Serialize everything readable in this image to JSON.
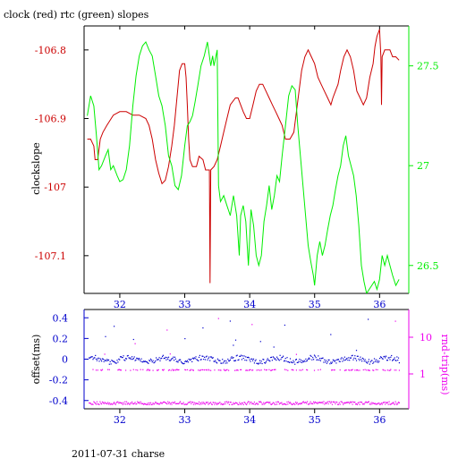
{
  "page": {
    "title": "clock (red) rtc (green) slopes",
    "footer": "2011-07-31 charse"
  },
  "colors": {
    "clock": "#cc0000",
    "rtc": "#00ee00",
    "offset": "#0000cc",
    "roundtrip": "#ee00ee",
    "axes": "#000000"
  },
  "chart_data": [
    {
      "type": "line",
      "xlim": [
        31.45,
        36.45
      ],
      "x_ticks": [
        "32",
        "33",
        "34",
        "35",
        "36"
      ],
      "x_tick_values": [
        32,
        33,
        34,
        35,
        36
      ],
      "ylabel_left": "clockslope",
      "ylim_left": [
        -107.155,
        -106.765
      ],
      "y_ticks_left": [
        "-106.8",
        "-106.9",
        "-107",
        "-107.1"
      ],
      "y_tick_values_left": [
        -106.8,
        -106.9,
        -107.0,
        -107.1
      ],
      "ylim_right": [
        26.36,
        27.7
      ],
      "y_ticks_right": [
        "27.5",
        "27",
        "26.5"
      ],
      "y_tick_values_right": [
        27.5,
        27.0,
        26.5
      ],
      "series": [
        {
          "name": "clock",
          "axis": "left",
          "points": [
            [
              31.5,
              -106.93
            ],
            [
              31.55,
              -106.93
            ],
            [
              31.6,
              -106.94
            ],
            [
              31.62,
              -106.96
            ],
            [
              31.66,
              -106.96
            ],
            [
              31.7,
              -106.93
            ],
            [
              31.74,
              -106.92
            ],
            [
              31.8,
              -106.91
            ],
            [
              31.9,
              -106.895
            ],
            [
              32.0,
              -106.89
            ],
            [
              32.1,
              -106.89
            ],
            [
              32.2,
              -106.895
            ],
            [
              32.3,
              -106.895
            ],
            [
              32.4,
              -106.9
            ],
            [
              32.45,
              -106.91
            ],
            [
              32.5,
              -106.93
            ],
            [
              32.55,
              -106.96
            ],
            [
              32.6,
              -106.98
            ],
            [
              32.65,
              -106.995
            ],
            [
              32.7,
              -106.99
            ],
            [
              32.75,
              -106.97
            ],
            [
              32.8,
              -106.94
            ],
            [
              32.84,
              -106.91
            ],
            [
              32.88,
              -106.87
            ],
            [
              32.92,
              -106.83
            ],
            [
              32.96,
              -106.82
            ],
            [
              33.0,
              -106.82
            ],
            [
              33.02,
              -106.84
            ],
            [
              33.04,
              -106.88
            ],
            [
              33.06,
              -106.93
            ],
            [
              33.08,
              -106.96
            ],
            [
              33.12,
              -106.97
            ],
            [
              33.18,
              -106.97
            ],
            [
              33.22,
              -106.955
            ],
            [
              33.28,
              -106.96
            ],
            [
              33.32,
              -106.975
            ],
            [
              33.36,
              -106.975
            ],
            [
              33.38,
              -106.975
            ],
            [
              33.39,
              -107.14
            ],
            [
              33.4,
              -106.975
            ],
            [
              33.45,
              -106.97
            ],
            [
              33.5,
              -106.96
            ],
            [
              33.55,
              -106.94
            ],
            [
              33.6,
              -106.92
            ],
            [
              33.65,
              -106.9
            ],
            [
              33.7,
              -106.88
            ],
            [
              33.78,
              -106.87
            ],
            [
              33.82,
              -106.87
            ],
            [
              33.86,
              -106.88
            ],
            [
              33.9,
              -106.89
            ],
            [
              33.95,
              -106.9
            ],
            [
              34.0,
              -106.9
            ],
            [
              34.05,
              -106.88
            ],
            [
              34.1,
              -106.86
            ],
            [
              34.15,
              -106.85
            ],
            [
              34.2,
              -106.85
            ],
            [
              34.25,
              -106.86
            ],
            [
              34.3,
              -106.87
            ],
            [
              34.35,
              -106.88
            ],
            [
              34.4,
              -106.89
            ],
            [
              34.45,
              -106.9
            ],
            [
              34.5,
              -106.91
            ],
            [
              34.55,
              -106.93
            ],
            [
              34.62,
              -106.93
            ],
            [
              34.68,
              -106.92
            ],
            [
              34.72,
              -106.89
            ],
            [
              34.76,
              -106.86
            ],
            [
              34.8,
              -106.83
            ],
            [
              34.85,
              -106.81
            ],
            [
              34.9,
              -106.8
            ],
            [
              34.95,
              -106.81
            ],
            [
              35.0,
              -106.82
            ],
            [
              35.05,
              -106.84
            ],
            [
              35.1,
              -106.85
            ],
            [
              35.15,
              -106.86
            ],
            [
              35.2,
              -106.87
            ],
            [
              35.25,
              -106.88
            ],
            [
              35.28,
              -106.87
            ],
            [
              35.32,
              -106.86
            ],
            [
              35.36,
              -106.85
            ],
            [
              35.4,
              -106.83
            ],
            [
              35.45,
              -106.81
            ],
            [
              35.5,
              -106.8
            ],
            [
              35.55,
              -106.81
            ],
            [
              35.6,
              -106.83
            ],
            [
              35.65,
              -106.86
            ],
            [
              35.7,
              -106.87
            ],
            [
              35.75,
              -106.88
            ],
            [
              35.8,
              -106.87
            ],
            [
              35.85,
              -106.84
            ],
            [
              35.9,
              -106.82
            ],
            [
              35.93,
              -106.795
            ],
            [
              35.96,
              -106.78
            ],
            [
              35.98,
              -106.775
            ],
            [
              36.0,
              -106.77
            ],
            [
              36.02,
              -106.81
            ],
            [
              36.03,
              -106.88
            ],
            [
              36.04,
              -106.81
            ],
            [
              36.08,
              -106.8
            ],
            [
              36.12,
              -106.8
            ],
            [
              36.16,
              -106.8
            ],
            [
              36.2,
              -106.81
            ],
            [
              36.25,
              -106.81
            ],
            [
              36.3,
              -106.815
            ]
          ]
        },
        {
          "name": "rtc",
          "axis": "right",
          "points": [
            [
              31.5,
              27.25
            ],
            [
              31.55,
              27.35
            ],
            [
              31.6,
              27.3
            ],
            [
              31.64,
              27.15
            ],
            [
              31.68,
              26.98
            ],
            [
              31.72,
              27.0
            ],
            [
              31.78,
              27.05
            ],
            [
              31.82,
              27.08
            ],
            [
              31.86,
              26.98
            ],
            [
              31.9,
              27.0
            ],
            [
              31.96,
              26.95
            ],
            [
              32.0,
              26.92
            ],
            [
              32.05,
              26.93
            ],
            [
              32.1,
              26.98
            ],
            [
              32.15,
              27.1
            ],
            [
              32.2,
              27.3
            ],
            [
              32.25,
              27.45
            ],
            [
              32.3,
              27.55
            ],
            [
              32.35,
              27.6
            ],
            [
              32.4,
              27.62
            ],
            [
              32.45,
              27.58
            ],
            [
              32.5,
              27.55
            ],
            [
              32.55,
              27.45
            ],
            [
              32.6,
              27.35
            ],
            [
              32.65,
              27.3
            ],
            [
              32.7,
              27.2
            ],
            [
              32.75,
              27.05
            ],
            [
              32.8,
              27.0
            ],
            [
              32.85,
              26.9
            ],
            [
              32.9,
              26.88
            ],
            [
              32.95,
              26.95
            ],
            [
              33.0,
              27.1
            ],
            [
              33.04,
              27.2
            ],
            [
              33.08,
              27.22
            ],
            [
              33.12,
              27.25
            ],
            [
              33.16,
              27.32
            ],
            [
              33.2,
              27.4
            ],
            [
              33.25,
              27.5
            ],
            [
              33.3,
              27.55
            ],
            [
              33.35,
              27.62
            ],
            [
              33.4,
              27.5
            ],
            [
              33.43,
              27.55
            ],
            [
              33.45,
              27.5
            ],
            [
              33.5,
              27.58
            ],
            [
              33.52,
              26.9
            ],
            [
              33.55,
              26.82
            ],
            [
              33.6,
              26.85
            ],
            [
              33.65,
              26.8
            ],
            [
              33.7,
              26.75
            ],
            [
              33.75,
              26.85
            ],
            [
              33.8,
              26.75
            ],
            [
              33.84,
              26.55
            ],
            [
              33.86,
              26.75
            ],
            [
              33.9,
              26.8
            ],
            [
              33.94,
              26.72
            ],
            [
              33.98,
              26.5
            ],
            [
              34.02,
              26.78
            ],
            [
              34.06,
              26.7
            ],
            [
              34.1,
              26.55
            ],
            [
              34.14,
              26.5
            ],
            [
              34.18,
              26.55
            ],
            [
              34.22,
              26.72
            ],
            [
              34.26,
              26.8
            ],
            [
              34.3,
              26.9
            ],
            [
              34.34,
              26.78
            ],
            [
              34.38,
              26.85
            ],
            [
              34.42,
              26.95
            ],
            [
              34.46,
              26.92
            ],
            [
              34.5,
              27.05
            ],
            [
              34.55,
              27.2
            ],
            [
              34.6,
              27.35
            ],
            [
              34.65,
              27.4
            ],
            [
              34.7,
              27.38
            ],
            [
              34.74,
              27.2
            ],
            [
              34.78,
              27.05
            ],
            [
              34.82,
              26.9
            ],
            [
              34.86,
              26.75
            ],
            [
              34.9,
              26.6
            ],
            [
              34.94,
              26.52
            ],
            [
              34.98,
              26.45
            ],
            [
              35.0,
              26.4
            ],
            [
              35.04,
              26.55
            ],
            [
              35.08,
              26.62
            ],
            [
              35.12,
              26.55
            ],
            [
              35.16,
              26.6
            ],
            [
              35.2,
              26.68
            ],
            [
              35.24,
              26.75
            ],
            [
              35.28,
              26.8
            ],
            [
              35.32,
              26.88
            ],
            [
              35.36,
              26.95
            ],
            [
              35.4,
              27.0
            ],
            [
              35.44,
              27.1
            ],
            [
              35.48,
              27.15
            ],
            [
              35.52,
              27.05
            ],
            [
              35.56,
              27.0
            ],
            [
              35.6,
              26.95
            ],
            [
              35.64,
              26.85
            ],
            [
              35.68,
              26.7
            ],
            [
              35.72,
              26.5
            ],
            [
              35.76,
              26.42
            ],
            [
              35.8,
              26.36
            ],
            [
              35.84,
              26.38
            ],
            [
              35.88,
              26.4
            ],
            [
              35.92,
              26.42
            ],
            [
              35.96,
              26.38
            ],
            [
              36.0,
              26.43
            ],
            [
              36.04,
              26.55
            ],
            [
              36.08,
              26.5
            ],
            [
              36.12,
              26.55
            ],
            [
              36.16,
              26.5
            ],
            [
              36.2,
              26.45
            ],
            [
              36.25,
              26.4
            ],
            [
              36.3,
              26.43
            ]
          ]
        }
      ]
    },
    {
      "type": "scatter",
      "xlim": [
        31.45,
        36.45
      ],
      "x_ticks": [
        "32",
        "33",
        "34",
        "35",
        "36"
      ],
      "x_tick_values": [
        32,
        33,
        34,
        35,
        36
      ],
      "ylabel_left": "offset(ms)",
      "ylim_left": [
        -0.48,
        0.48
      ],
      "y_ticks_left": [
        "0.4",
        "0.2",
        "0",
        "-0.2",
        "-0.4"
      ],
      "y_tick_values_left": [
        0.4,
        0.2,
        0.0,
        -0.2,
        -0.4
      ],
      "ylabel_right": "rnd-trip(ms)",
      "y_ticks_right": [
        "10",
        "1"
      ],
      "y_tick_values_right": [
        10,
        1
      ],
      "series": [
        {
          "name": "offset",
          "axis": "left",
          "band_value": 0.0
        },
        {
          "name": "roundtrip",
          "axis": "left",
          "band_value": -0.42
        },
        {
          "name": "roundtrip-upper",
          "axis": "left",
          "band_value": -0.1
        }
      ]
    }
  ]
}
